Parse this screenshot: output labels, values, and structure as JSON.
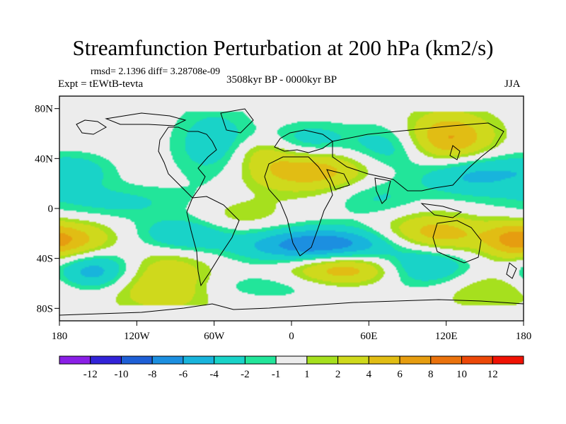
{
  "title": "Streamfunction Perturbation at 200 hPa (km2/s)",
  "stats_label": "rmsd= 2.1396 diff= 3.28708e-09",
  "expt_label": "Expt = tEWtB-tevta",
  "period_label": "3508kyr BP - 0000kyr BP",
  "season_label": "JJA",
  "y_axis": {
    "ticks": [
      {
        "lat": 80,
        "label": "80N"
      },
      {
        "lat": 40,
        "label": "40N"
      },
      {
        "lat": 0,
        "label": "0"
      },
      {
        "lat": -40,
        "label": "40S"
      },
      {
        "lat": -80,
        "label": "80S"
      }
    ]
  },
  "x_axis": {
    "ticks": [
      {
        "lon": -180,
        "label": "180"
      },
      {
        "lon": -120,
        "label": "120W"
      },
      {
        "lon": -60,
        "label": "60W"
      },
      {
        "lon": 0,
        "label": "0"
      },
      {
        "lon": 60,
        "label": "60E"
      },
      {
        "lon": 120,
        "label": "120E"
      },
      {
        "lon": 180,
        "label": "180"
      }
    ]
  },
  "colorbar": {
    "colors": [
      "#8a1fe6",
      "#3223d8",
      "#1e5fd6",
      "#1c8fe0",
      "#18b4dc",
      "#19d3c8",
      "#22e59a",
      "#ececec",
      "#a6e01e",
      "#cfd91c",
      "#e1bd14",
      "#e69d10",
      "#ea720c",
      "#ec4808",
      "#f01204"
    ],
    "labels": [
      "-12",
      "-10",
      "-8",
      "-6",
      "-4",
      "-2",
      "-1",
      "1",
      "2",
      "4",
      "6",
      "8",
      "10",
      "12"
    ]
  },
  "chart_data": {
    "type": "heatmap",
    "variable": "Streamfunction Perturbation at 200 hPa",
    "units": "km2/s",
    "season": "JJA",
    "levels": [
      -12,
      -10,
      -8,
      -6,
      -4,
      -2,
      -1,
      1,
      2,
      4,
      6,
      8,
      10,
      12
    ],
    "xlim": [
      -180,
      180
    ],
    "ylim": [
      -90,
      90
    ],
    "field_features": [
      {
        "lon": -155,
        "lat": -50,
        "value": -6.5,
        "rlon": 22,
        "rlat": 14
      },
      {
        "lon": -165,
        "lat": -28,
        "value": 5.5,
        "rlon": 22,
        "rlat": 12
      },
      {
        "lon": -95,
        "lat": -55,
        "value": 3.5,
        "rlon": 25,
        "rlat": 20
      },
      {
        "lon": -85,
        "lat": -22,
        "value": -4.5,
        "rlon": 25,
        "rlat": 10
      },
      {
        "lon": -135,
        "lat": -65,
        "value": 2.0,
        "rlon": 40,
        "rlat": 10
      },
      {
        "lon": -140,
        "lat": 5,
        "value": -2.5,
        "rlon": 45,
        "rlat": 10
      },
      {
        "lon": -165,
        "lat": 30,
        "value": -2.5,
        "rlon": 20,
        "rlat": 10
      },
      {
        "lon": -60,
        "lat": 50,
        "value": -3.5,
        "rlon": 22,
        "rlat": 22
      },
      {
        "lon": -25,
        "lat": 45,
        "value": 2.0,
        "rlon": 15,
        "rlat": 8
      },
      {
        "lon": -40,
        "lat": -5,
        "value": 2.0,
        "rlon": 25,
        "rlat": 10
      },
      {
        "lon": 15,
        "lat": 30,
        "value": 5.5,
        "rlon": 40,
        "rlat": 12
      },
      {
        "lon": 15,
        "lat": 55,
        "value": -3.0,
        "rlon": 20,
        "rlat": 10
      },
      {
        "lon": 25,
        "lat": -30,
        "value": -9.0,
        "rlon": 42,
        "rlat": 10
      },
      {
        "lon": 40,
        "lat": -48,
        "value": 6.5,
        "rlon": 30,
        "rlat": 11
      },
      {
        "lon": 65,
        "lat": 10,
        "value": -2.5,
        "rlon": 25,
        "rlat": 12
      },
      {
        "lon": 78,
        "lat": 48,
        "value": -4.0,
        "rlon": 25,
        "rlat": 14
      },
      {
        "lon": 110,
        "lat": -22,
        "value": 6.0,
        "rlon": 30,
        "rlat": 12
      },
      {
        "lon": 105,
        "lat": -45,
        "value": -5.0,
        "rlon": 25,
        "rlat": 12
      },
      {
        "lon": 120,
        "lat": 55,
        "value": 7.0,
        "rlon": 25,
        "rlat": 15
      },
      {
        "lon": 140,
        "lat": 28,
        "value": -5.0,
        "rlon": 30,
        "rlat": 12
      },
      {
        "lon": 170,
        "lat": -25,
        "value": 4.0,
        "rlon": 15,
        "rlat": 10
      },
      {
        "lon": 150,
        "lat": -65,
        "value": 2.0,
        "rlon": 35,
        "rlat": 12
      },
      {
        "lon": 0,
        "lat": -62,
        "value": -2.0,
        "rlon": 60,
        "rlat": 8
      }
    ]
  }
}
